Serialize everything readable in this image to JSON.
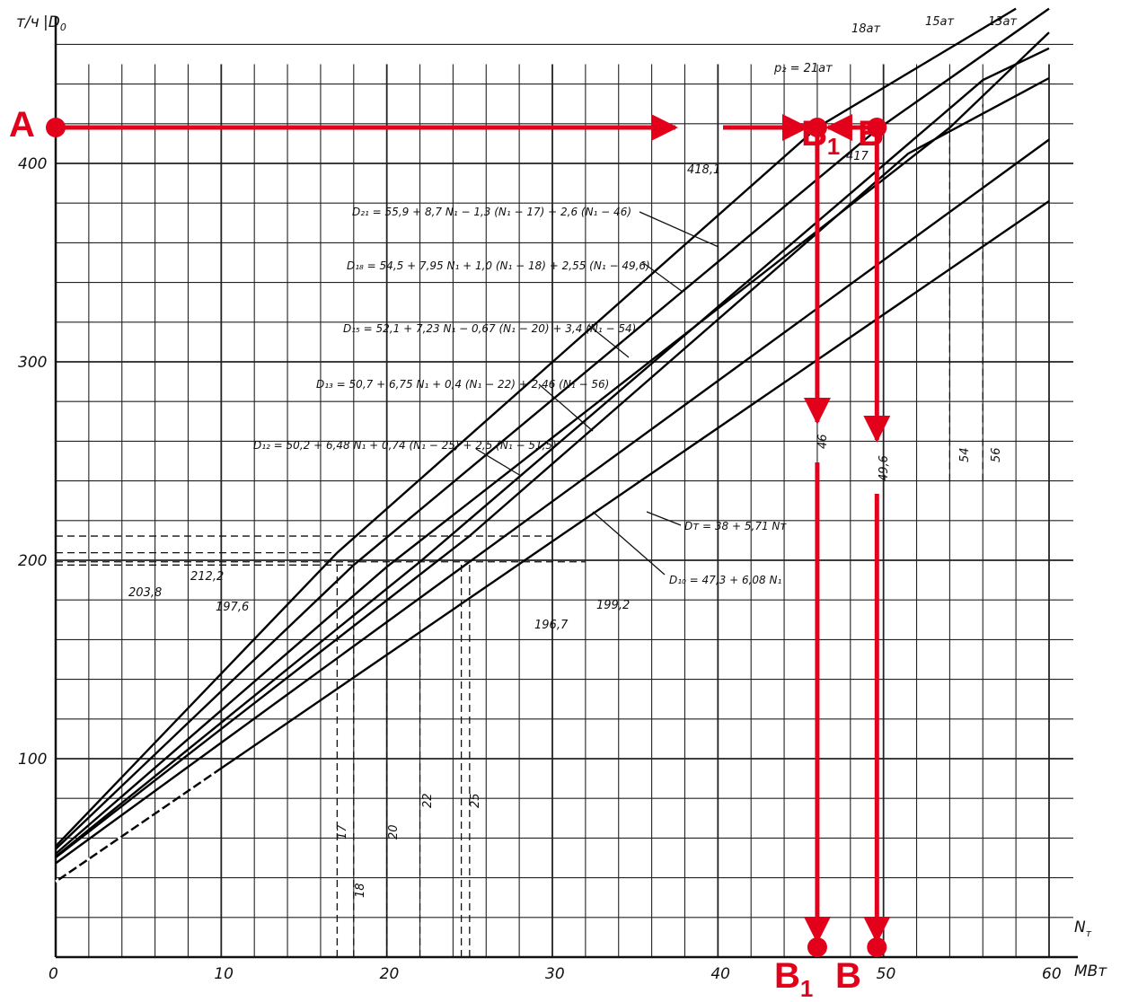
{
  "chart_data": {
    "type": "line",
    "title": "",
    "xlabel": "N",
    "xlabel_sub": "т",
    "xunit": "МВт",
    "ylabel": "т/ч",
    "ylabel_var": "D",
    "ylabel_sub": "0",
    "xlim": [
      0,
      60
    ],
    "ylim": [
      0,
      480
    ],
    "x_ticks": [
      "0",
      "10",
      "20",
      "30",
      "40",
      "50",
      "60"
    ],
    "y_ticks": [
      "100",
      "200",
      "300",
      "400"
    ],
    "grid": true,
    "series": [
      {
        "name": "D₂₁ = 55,9 + 8,7 N₁ − 1,3 (N₁ − 17) + 2,6 (N₁ − 46)",
        "points": [
          [
            0,
            55.9
          ],
          [
            17,
            203.8
          ],
          [
            46,
            418.1
          ],
          [
            58,
            478
          ]
        ]
      },
      {
        "name": "D₁₈ = 54,5 + 7,95 N₁ + 1,0 (N₁ − 18) + 2,55 (N₁ − 49,6)",
        "points": [
          [
            0,
            54.5
          ],
          [
            18,
            197.6
          ],
          [
            49.6,
            417
          ],
          [
            60,
            478
          ]
        ]
      },
      {
        "name": "D₁₅ = 52,1 + 7,23 N₁ − 0,67 (N₁ − 20) + 3,4 (N₁ − 54)",
        "points": [
          [
            0,
            52.1
          ],
          [
            20,
            196.7
          ],
          [
            54,
            418
          ],
          [
            60,
            466
          ]
        ]
      },
      {
        "name": "D₁₃ = 50,7 + 6,75 N₁ + 0,4 (N₁ − 22) + 2,46 (N₁ − 56)",
        "points": [
          [
            0,
            50.7
          ],
          [
            22,
            199.2
          ],
          [
            56,
            442
          ],
          [
            60,
            458
          ]
        ]
      },
      {
        "name": "D₁₂ = 50,2 + 6,48 N₁ + 0,74 (N₁ − 25) + 2,5 (N₁ − 51,5)",
        "points": [
          [
            0,
            50.2
          ],
          [
            25,
            212.2
          ],
          [
            51.5,
            405
          ],
          [
            60,
            443
          ]
        ]
      },
      {
        "name": "D₁₀ = 47,3 + 6,08 N₁",
        "points": [
          [
            0,
            47.3
          ],
          [
            60,
            412
          ]
        ]
      },
      {
        "name": "Dт = 38 + 5,71 Nт",
        "points": [
          [
            0,
            38
          ],
          [
            60,
            381
          ]
        ],
        "dashed_start": 10
      }
    ],
    "annotations": {
      "y_values": [
        "212,2",
        "203,8",
        "197,6",
        "199,2",
        "196,7"
      ],
      "x_break_values": [
        "17",
        "18",
        "20",
        "22",
        "25"
      ],
      "x_break_right": [
        "54",
        "56"
      ],
      "top_value_1": "418,1",
      "top_value_2": "417",
      "x_read_1": "46",
      "x_read_2": "49,6",
      "pressure_labels": [
        "18ат",
        "15ат",
        "13ат"
      ],
      "pressure_inline": "p₂ = 21ат"
    },
    "overlay": {
      "color": "#e2001a",
      "start_y": 418.1,
      "point_b1_x": 46,
      "point_b_x": 49.6,
      "labels": {
        "a": "А",
        "b": "Б",
        "b1_letter": "Б",
        "b1_sub": "1",
        "v": "В",
        "v1_letter": "В",
        "v1_sub": "1"
      }
    }
  }
}
